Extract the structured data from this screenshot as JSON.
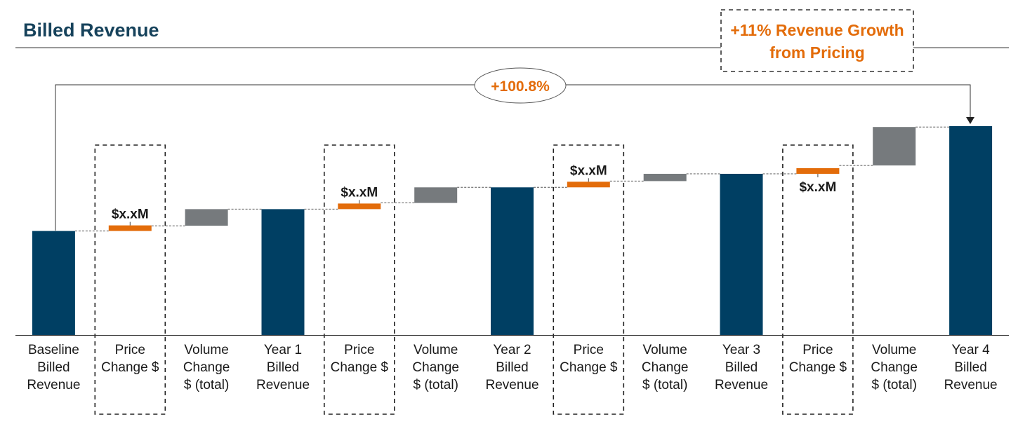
{
  "chart_data": {
    "type": "bar",
    "subtype": "waterfall",
    "title": "Billed Revenue",
    "categories": [
      [
        "Baseline",
        "Billed",
        "Revenue"
      ],
      [
        "Price",
        "Change $"
      ],
      [
        "Volume",
        "Change",
        "$ (total)"
      ],
      [
        "Year 1",
        "Billed",
        "Revenue"
      ],
      [
        "Price",
        "Change $"
      ],
      [
        "Volume",
        "Change",
        "$ (total)"
      ],
      [
        "Year 2",
        "Billed",
        "Revenue"
      ],
      [
        "Price",
        "Change $"
      ],
      [
        "Volume",
        "Change",
        "$ (total)"
      ],
      [
        "Year 3",
        "Billed",
        "Revenue"
      ],
      [
        "Price",
        "Change $"
      ],
      [
        "Volume",
        "Change",
        "$ (total)"
      ],
      [
        "Year 4",
        "Billed",
        "Revenue"
      ]
    ],
    "bars": [
      {
        "kind": "total",
        "start": 0,
        "end": 100
      },
      {
        "kind": "price",
        "start": 100,
        "end": 105,
        "label": "$x.xM",
        "label_pos": "above"
      },
      {
        "kind": "volume",
        "start": 105,
        "end": 121
      },
      {
        "kind": "total",
        "start": 0,
        "end": 121
      },
      {
        "kind": "price",
        "start": 121,
        "end": 127,
        "label": "$x.xM",
        "label_pos": "above"
      },
      {
        "kind": "volume",
        "start": 127,
        "end": 142
      },
      {
        "kind": "total",
        "start": 0,
        "end": 142
      },
      {
        "kind": "price",
        "start": 142,
        "end": 148,
        "label": "$x.xM",
        "label_pos": "above"
      },
      {
        "kind": "volume",
        "start": 148,
        "end": 155
      },
      {
        "kind": "total",
        "start": 0,
        "end": 155
      },
      {
        "kind": "price",
        "start": 155,
        "end": 163,
        "label": "$x.xM",
        "label_pos": "below"
      },
      {
        "kind": "volume",
        "start": 163,
        "end": 200
      },
      {
        "kind": "total",
        "start": 0,
        "end": 200.8
      }
    ],
    "highlighted_categories": [
      1,
      4,
      7,
      10
    ],
    "ylim": [
      0,
      200.8
    ],
    "growth_callout": "+100.8%",
    "annotation": [
      "+11% Revenue Growth",
      "from Pricing"
    ],
    "colors": {
      "total": "#003f63",
      "price": "#e36c0a",
      "volume": "#767a7d",
      "title": "#16425b",
      "accent_text": "#e36c0a"
    }
  }
}
